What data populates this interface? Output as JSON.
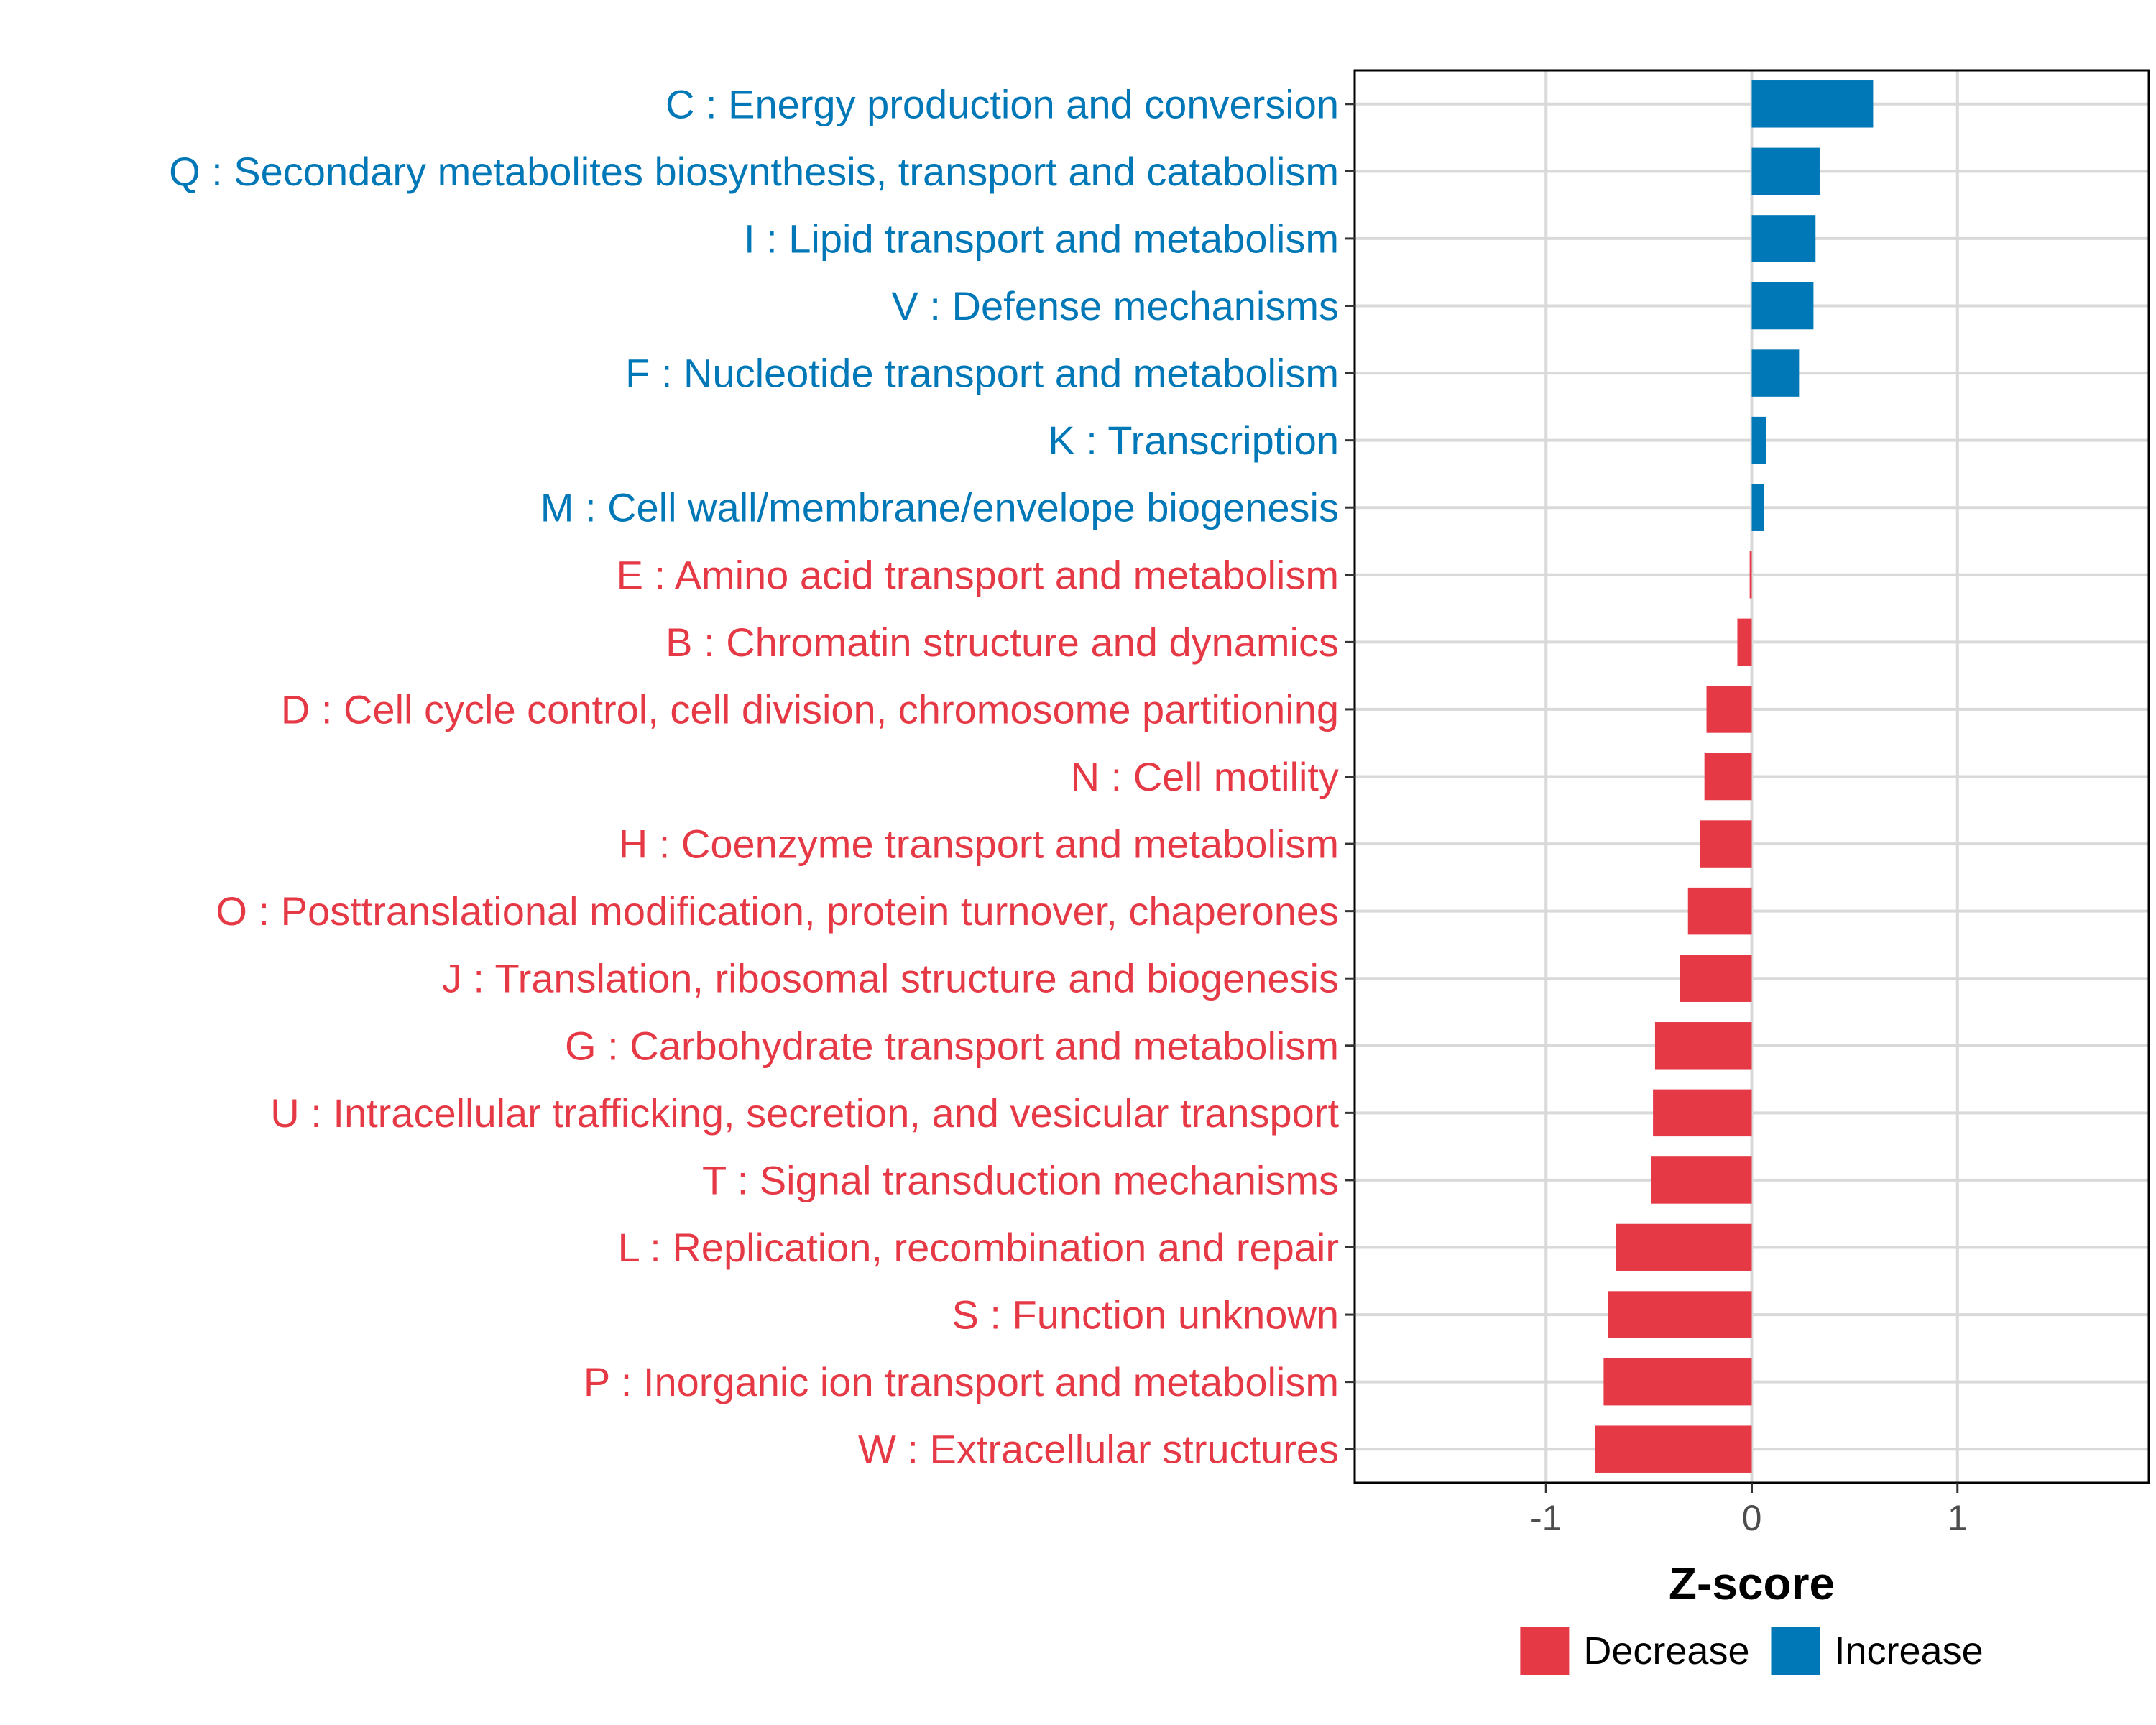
{
  "chart_data": {
    "type": "bar",
    "orientation": "horizontal",
    "xlabel": "Z-score",
    "ylabel": "",
    "xlim": [
      -1.93,
      1.93
    ],
    "xticks": [
      {
        "value": -1,
        "label": "-1"
      },
      {
        "value": 0,
        "label": "0"
      },
      {
        "value": 1,
        "label": "1"
      }
    ],
    "grid": true,
    "colors": {
      "Decrease": "#E63946",
      "Increase": "#0077B6"
    },
    "legend": {
      "position": "bottom",
      "items": [
        {
          "name": "Decrease",
          "color": "#E63946"
        },
        {
          "name": "Increase",
          "color": "#0077B6"
        }
      ]
    },
    "categories": [
      "C : Energy production and conversion",
      "Q : Secondary metabolites biosynthesis, transport and catabolism",
      "I : Lipid transport and metabolism",
      "V : Defense mechanisms",
      "F : Nucleotide transport and metabolism",
      "K : Transcription",
      "M : Cell wall/membrane/envelope biogenesis",
      "E : Amino acid transport and metabolism",
      "B : Chromatin structure and dynamics",
      "D : Cell cycle control, cell division, chromosome partitioning",
      "N : Cell motility",
      "H : Coenzyme transport and metabolism",
      "O : Posttranslational modification, protein turnover, chaperones",
      "J : Translation, ribosomal structure and biogenesis",
      "G : Carbohydrate transport and metabolism",
      "U : Intracellular trafficking, secretion, and vesicular transport",
      "T : Signal transduction mechanisms",
      "L : Replication, recombination and repair",
      "S : Function unknown",
      "P : Inorganic ion transport and metabolism",
      "W : Extracellular structures"
    ],
    "values": [
      0.59,
      0.33,
      0.31,
      0.3,
      0.23,
      0.07,
      0.06,
      -0.01,
      -0.07,
      -0.22,
      -0.23,
      -0.25,
      -0.31,
      -0.35,
      -0.47,
      -0.48,
      -0.49,
      -0.66,
      -0.7,
      -0.72,
      -0.76
    ],
    "groups": [
      "Increase",
      "Increase",
      "Increase",
      "Increase",
      "Increase",
      "Increase",
      "Increase",
      "Decrease",
      "Decrease",
      "Decrease",
      "Decrease",
      "Decrease",
      "Decrease",
      "Decrease",
      "Decrease",
      "Decrease",
      "Decrease",
      "Decrease",
      "Decrease",
      "Decrease",
      "Decrease"
    ]
  }
}
